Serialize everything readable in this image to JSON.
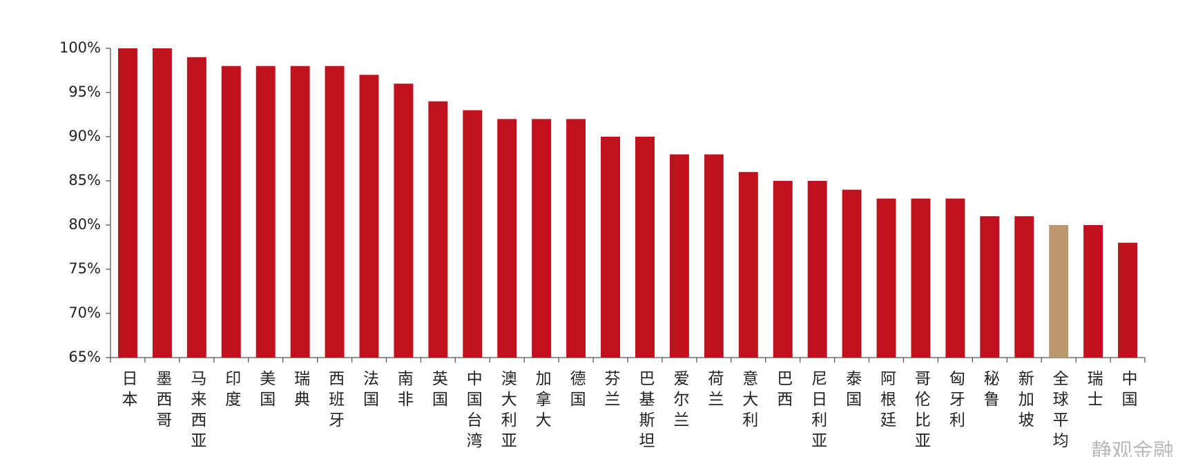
{
  "chart_data": {
    "type": "bar",
    "categories": [
      "日本",
      "墨西哥",
      "马来西亚",
      "印度",
      "美国",
      "瑞典",
      "西班牙",
      "法国",
      "南非",
      "英国",
      "中国台湾",
      "澳大利亚",
      "加拿大",
      "德国",
      "芬兰",
      "巴基斯坦",
      "爱尔兰",
      "荷兰",
      "意大利",
      "巴西",
      "尼日利亚",
      "泰国",
      "阿根廷",
      "哥伦比亚",
      "匈牙利",
      "秘鲁",
      "新加坡",
      "全球平均",
      "瑞士",
      "中国"
    ],
    "values": [
      100,
      100,
      99,
      98,
      98,
      98,
      98,
      97,
      96,
      94,
      93,
      92,
      92,
      92,
      90,
      90,
      88,
      88,
      86,
      85,
      85,
      84,
      83,
      83,
      83,
      81,
      81,
      80,
      80,
      78
    ],
    "colors": [
      "#c0111f",
      "#c0111f",
      "#c0111f",
      "#c0111f",
      "#c0111f",
      "#c0111f",
      "#c0111f",
      "#c0111f",
      "#c0111f",
      "#c0111f",
      "#c0111f",
      "#c0111f",
      "#c0111f",
      "#c0111f",
      "#c0111f",
      "#c0111f",
      "#c0111f",
      "#c0111f",
      "#c0111f",
      "#c0111f",
      "#c0111f",
      "#c0111f",
      "#c0111f",
      "#c0111f",
      "#c0111f",
      "#c0111f",
      "#c0111f",
      "#bb9870",
      "#c0111f",
      "#c0111f"
    ],
    "ylim": [
      65,
      100
    ],
    "yticks": [
      {
        "value": 65,
        "label": "65%"
      },
      {
        "value": 70,
        "label": "70%"
      },
      {
        "value": 75,
        "label": "75%"
      },
      {
        "value": 80,
        "label": "80%"
      },
      {
        "value": 85,
        "label": "85%"
      },
      {
        "value": 90,
        "label": "90%"
      },
      {
        "value": 95,
        "label": "95%"
      },
      {
        "value": 100,
        "label": "100%"
      }
    ],
    "grid": false,
    "watermark": "静观金融"
  }
}
